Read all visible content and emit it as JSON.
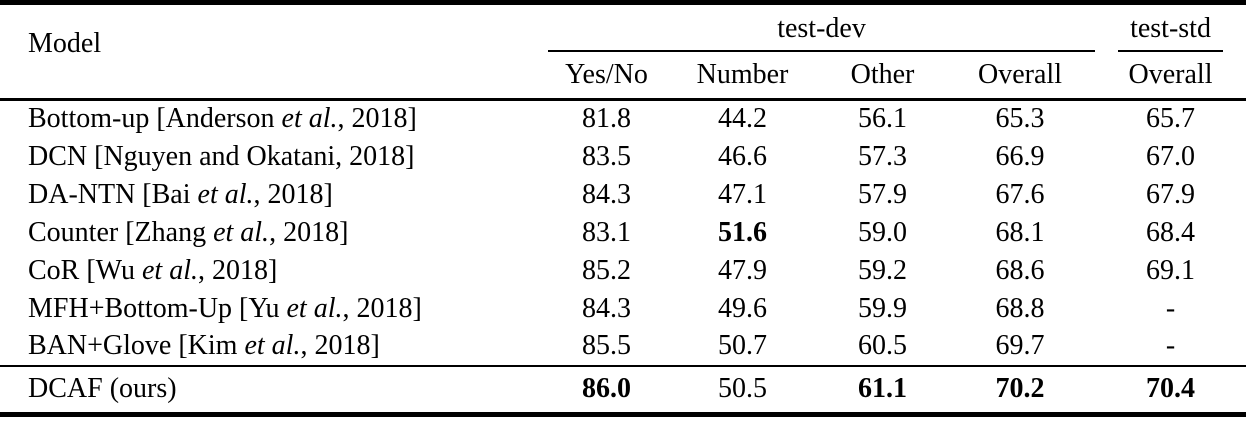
{
  "colors": {
    "text": "#000000",
    "background": "#ffffff",
    "rule": "#000000"
  },
  "table": {
    "header": {
      "model_label": "Model",
      "groups": [
        {
          "label": "test-dev"
        },
        {
          "label": "test-std"
        }
      ],
      "columns": [
        "Yes/No",
        "Number",
        "Other",
        "Overall",
        "Overall"
      ]
    },
    "rows": [
      {
        "model": [
          {
            "text": "Bottom-up [Anderson ",
            "italic": false
          },
          {
            "text": "et al.",
            "italic": true
          },
          {
            "text": ", 2018]",
            "italic": false
          }
        ],
        "values": [
          {
            "text": "81.8",
            "bold": false
          },
          {
            "text": "44.2",
            "bold": false
          },
          {
            "text": "56.1",
            "bold": false
          },
          {
            "text": "65.3",
            "bold": false
          },
          {
            "text": "65.7",
            "bold": false
          }
        ],
        "emphasized": false
      },
      {
        "model": [
          {
            "text": "DCN [Nguyen and Okatani, 2018]",
            "italic": false
          }
        ],
        "values": [
          {
            "text": "83.5",
            "bold": false
          },
          {
            "text": "46.6",
            "bold": false
          },
          {
            "text": "57.3",
            "bold": false
          },
          {
            "text": "66.9",
            "bold": false
          },
          {
            "text": "67.0",
            "bold": false
          }
        ],
        "emphasized": false
      },
      {
        "model": [
          {
            "text": "DA-NTN [Bai ",
            "italic": false
          },
          {
            "text": "et al.",
            "italic": true
          },
          {
            "text": ", 2018]",
            "italic": false
          }
        ],
        "values": [
          {
            "text": "84.3",
            "bold": false
          },
          {
            "text": "47.1",
            "bold": false
          },
          {
            "text": "57.9",
            "bold": false
          },
          {
            "text": "67.6",
            "bold": false
          },
          {
            "text": "67.9",
            "bold": false
          }
        ],
        "emphasized": false
      },
      {
        "model": [
          {
            "text": "Counter [Zhang ",
            "italic": false
          },
          {
            "text": "et al.",
            "italic": true
          },
          {
            "text": ", 2018]",
            "italic": false
          }
        ],
        "values": [
          {
            "text": "83.1",
            "bold": false
          },
          {
            "text": "51.6",
            "bold": true
          },
          {
            "text": "59.0",
            "bold": false
          },
          {
            "text": "68.1",
            "bold": false
          },
          {
            "text": "68.4",
            "bold": false
          }
        ],
        "emphasized": false
      },
      {
        "model": [
          {
            "text": "CoR [Wu ",
            "italic": false
          },
          {
            "text": "et al.",
            "italic": true
          },
          {
            "text": ", 2018]",
            "italic": false
          }
        ],
        "values": [
          {
            "text": "85.2",
            "bold": false
          },
          {
            "text": "47.9",
            "bold": false
          },
          {
            "text": "59.2",
            "bold": false
          },
          {
            "text": "68.6",
            "bold": false
          },
          {
            "text": "69.1",
            "bold": false
          }
        ],
        "emphasized": false
      },
      {
        "model": [
          {
            "text": "MFH+Bottom-Up [Yu ",
            "italic": false
          },
          {
            "text": "et al.",
            "italic": true
          },
          {
            "text": ", 2018]",
            "italic": false
          }
        ],
        "values": [
          {
            "text": "84.3",
            "bold": false
          },
          {
            "text": "49.6",
            "bold": false
          },
          {
            "text": "59.9",
            "bold": false
          },
          {
            "text": "68.8",
            "bold": false
          },
          {
            "text": "-",
            "bold": false
          }
        ],
        "emphasized": false
      },
      {
        "model": [
          {
            "text": "BAN+Glove [Kim ",
            "italic": false
          },
          {
            "text": "et al.",
            "italic": true
          },
          {
            "text": ", 2018]",
            "italic": false
          }
        ],
        "values": [
          {
            "text": "85.5",
            "bold": false
          },
          {
            "text": "50.7",
            "bold": false
          },
          {
            "text": "60.5",
            "bold": false
          },
          {
            "text": "69.7",
            "bold": false
          },
          {
            "text": "-",
            "bold": false
          }
        ],
        "emphasized": false
      },
      {
        "model": [
          {
            "text": "DCAF (ours)",
            "italic": false
          }
        ],
        "values": [
          {
            "text": "86.0",
            "bold": true
          },
          {
            "text": "50.5",
            "bold": false
          },
          {
            "text": "61.1",
            "bold": true
          },
          {
            "text": "70.2",
            "bold": true
          },
          {
            "text": "70.4",
            "bold": true
          }
        ],
        "emphasized": true
      }
    ]
  }
}
